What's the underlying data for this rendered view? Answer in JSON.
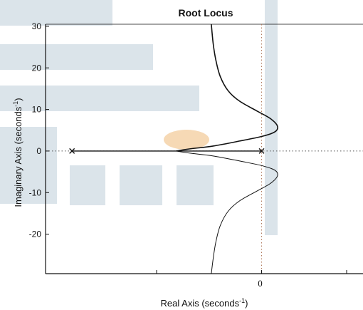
{
  "chart_data": {
    "type": "line",
    "title": "Root Locus",
    "xlabel": "Real Axis (seconds",
    "ylabel": "Imaginary Axis (seconds",
    "label_superscript": "-1",
    "label_close": ")",
    "xlim": [
      -2.45,
      1.15
    ],
    "ylim": [
      -29.5,
      30.5
    ],
    "x_ticks": [
      {
        "value": 0,
        "label": "0"
      }
    ],
    "y_ticks": [
      {
        "value": 30,
        "label": "30"
      },
      {
        "value": 20,
        "label": "20"
      },
      {
        "value": 10,
        "label": "10"
      },
      {
        "value": 0,
        "label": "0"
      },
      {
        "value": -10,
        "label": "-10"
      },
      {
        "value": -20,
        "label": "-20"
      }
    ],
    "grid": false,
    "colors": {
      "locus": "#111111",
      "axis": "#111111",
      "dotted": "#555555",
      "watermark": "#dbe4ea",
      "watermark_accent": "#f6d9b5"
    },
    "poles": [
      {
        "x": -2.15,
        "y": 0
      },
      {
        "x": 0,
        "y": 0
      }
    ],
    "series": [
      {
        "values": [
          [
            -2.15,
            0
          ],
          [
            -1.2,
            0
          ],
          [
            -0.97,
            0
          ]
        ]
      },
      {
        "values": [
          [
            0,
            0
          ],
          [
            -0.5,
            0
          ],
          [
            -0.97,
            0
          ]
        ]
      },
      {
        "values": [
          [
            -0.97,
            0
          ],
          [
            -0.82,
            0.5
          ],
          [
            -0.55,
            1.2
          ],
          [
            -0.25,
            2.4
          ],
          [
            0,
            3.5
          ],
          [
            0.15,
            4.6
          ],
          [
            0.18,
            6.0
          ],
          [
            0.1,
            7.8
          ],
          [
            -0.05,
            9.6
          ],
          [
            -0.25,
            12.0
          ],
          [
            -0.38,
            14.5
          ],
          [
            -0.47,
            18.0
          ],
          [
            -0.52,
            22.0
          ],
          [
            -0.55,
            26.0
          ],
          [
            -0.57,
            30.5
          ]
        ]
      },
      {
        "values": [
          [
            -0.97,
            0
          ],
          [
            -0.82,
            -0.5
          ],
          [
            -0.55,
            -1.2
          ],
          [
            -0.25,
            -2.4
          ],
          [
            0,
            -3.5
          ],
          [
            0.15,
            -4.6
          ],
          [
            0.18,
            -6.0
          ],
          [
            0.1,
            -7.8
          ],
          [
            -0.05,
            -9.6
          ],
          [
            -0.25,
            -12.0
          ],
          [
            -0.38,
            -14.5
          ],
          [
            -0.47,
            -18.0
          ],
          [
            -0.52,
            -22.0
          ],
          [
            -0.55,
            -26.0
          ],
          [
            -0.57,
            -29.5
          ]
        ]
      }
    ]
  }
}
